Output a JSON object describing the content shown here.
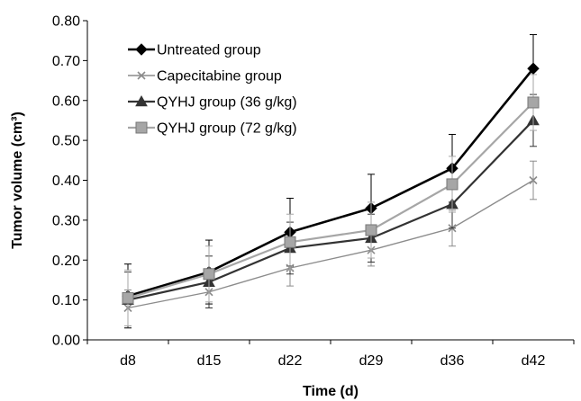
{
  "chart_data": {
    "type": "line",
    "xlabel": "Time (d)",
    "ylabel": "Tumor volume (cm³)",
    "categories": [
      "d8",
      "d15",
      "d22",
      "d29",
      "d36",
      "d42"
    ],
    "ylim": [
      0,
      0.8
    ],
    "yticks": [
      "0.00",
      "0.10",
      "0.20",
      "0.30",
      "0.40",
      "0.50",
      "0.60",
      "0.70",
      "0.80"
    ],
    "grid": false,
    "legend_position": "top-left",
    "series": [
      {
        "name": "Untreated group",
        "values": [
          0.11,
          0.17,
          0.27,
          0.33,
          0.43,
          0.68
        ],
        "errors": [
          0.08,
          0.08,
          0.085,
          0.085,
          0.085,
          0.085
        ],
        "color": "#000000",
        "marker": "diamond",
        "stroke_width": 2.6
      },
      {
        "name": "Capecitabine group",
        "values": [
          0.08,
          0.12,
          0.18,
          0.225,
          0.28,
          0.4
        ],
        "errors": [
          0.045,
          0.04,
          0.045,
          0.04,
          0.045,
          0.048
        ],
        "color": "#8c8c8c",
        "marker": "x",
        "stroke_width": 1.4
      },
      {
        "name": "QYHJ group (36 g/kg)",
        "values": [
          0.1,
          0.145,
          0.23,
          0.255,
          0.34,
          0.55
        ],
        "errors": [
          0.07,
          0.065,
          0.065,
          0.06,
          0.06,
          0.065
        ],
        "color": "#333333",
        "marker": "triangle",
        "stroke_width": 2.2
      },
      {
        "name": "QYHJ group (72 g/kg)",
        "values": [
          0.105,
          0.165,
          0.245,
          0.275,
          0.39,
          0.595
        ],
        "errors": [
          0.07,
          0.07,
          0.07,
          0.07,
          0.07,
          0.07
        ],
        "color": "#a6a6a6",
        "marker": "square",
        "stroke_width": 2.2
      }
    ]
  }
}
